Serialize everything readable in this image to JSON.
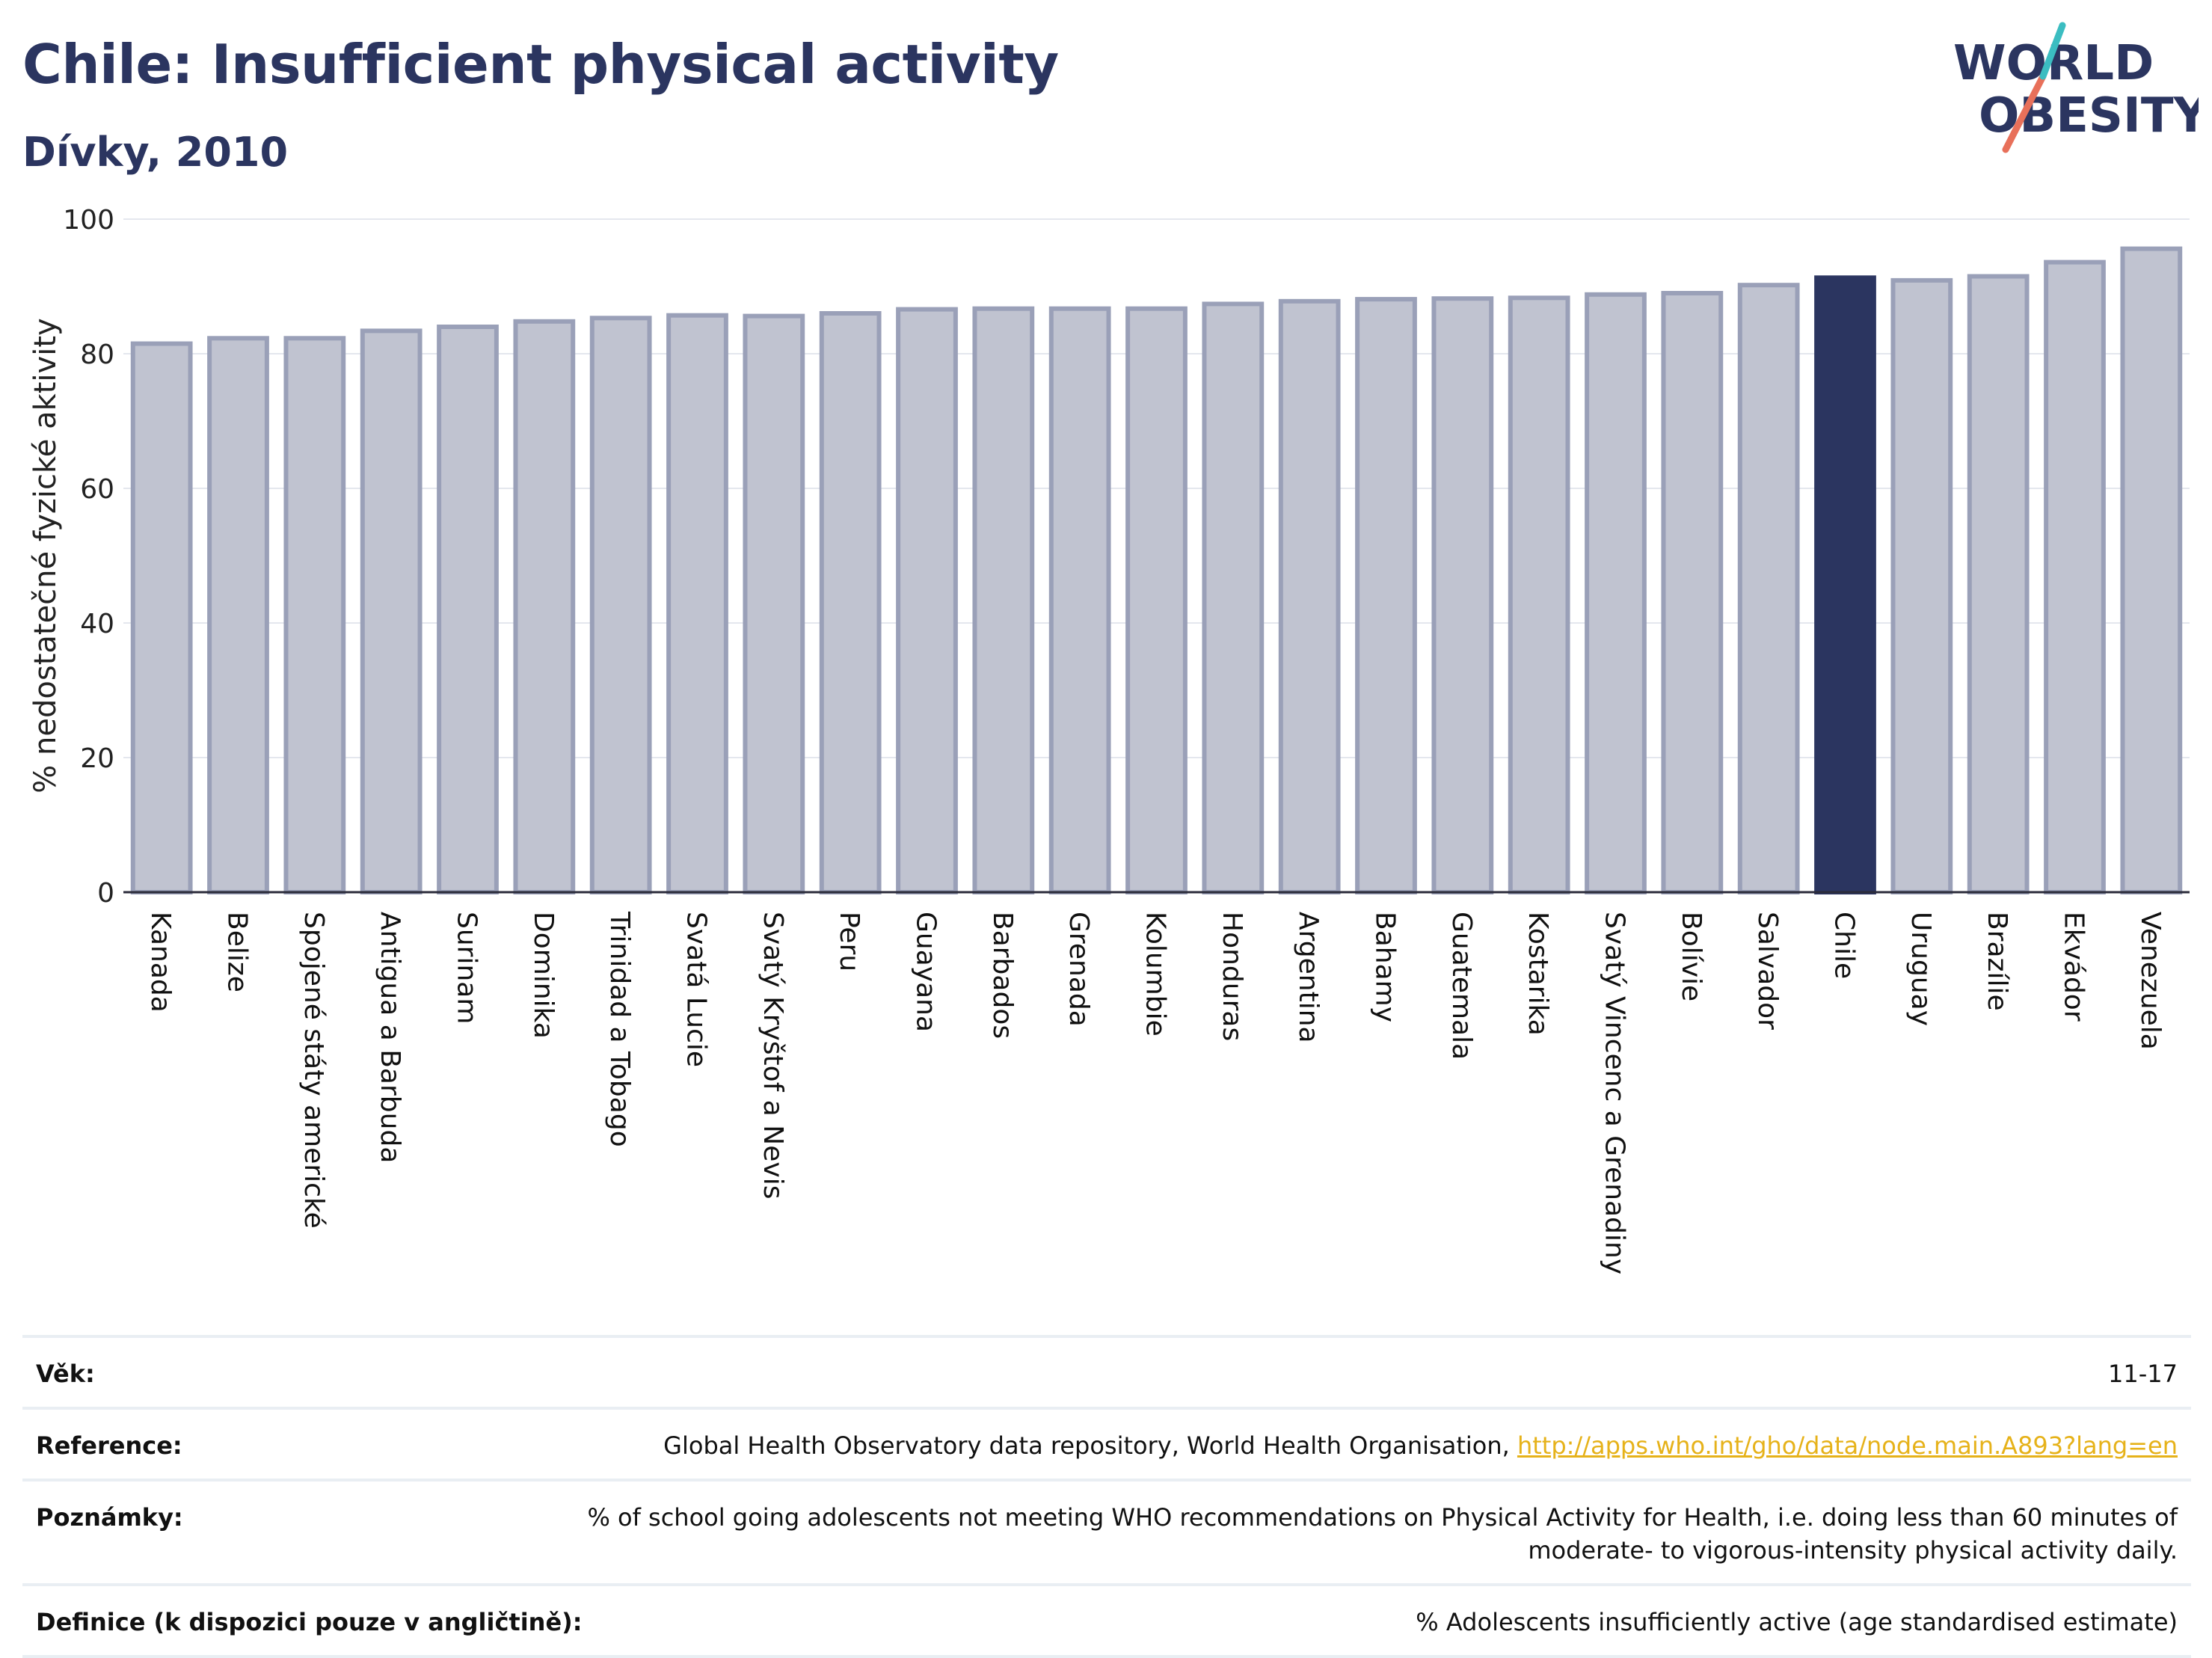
{
  "header": {
    "title": "Chile: Insufficient physical activity",
    "subtitle": "Dívky, 2010"
  },
  "logo": {
    "line1": "WORLD",
    "line2": "OBESITY",
    "colors": {
      "text": "#2b3560",
      "slash_teal": "#3bbdc1",
      "slash_coral": "#e8705a"
    }
  },
  "chart_data": {
    "type": "bar",
    "ylabel": "% nedostatečné fyzické aktivity",
    "xlabel": "",
    "ylim": [
      0,
      100
    ],
    "yticks": [
      0,
      20,
      40,
      60,
      80,
      100
    ],
    "grid": true,
    "highlight": "Chile",
    "colors": {
      "bar": "#c0c3d0",
      "bar_edge": "#9aa0b8",
      "highlight": "#2b3560"
    },
    "categories": [
      "Kanada",
      "Belize",
      "Spojené státy americké",
      "Antigua a Barbuda",
      "Surinam",
      "Dominika",
      "Trinidad a Tobago",
      "Svatá Lucie",
      "Svatý Kryštof a Nevis",
      "Peru",
      "Guayana",
      "Barbados",
      "Grenada",
      "Kolumbie",
      "Honduras",
      "Argentina",
      "Bahamy",
      "Guatemala",
      "Kostarika",
      "Svatý Vincenc a Grenadiny",
      "Bolívie",
      "Salvador",
      "Chile",
      "Uruguay",
      "Brazílie",
      "Ekvádor",
      "Venezuela"
    ],
    "values": [
      81.5,
      82.3,
      82.3,
      83.4,
      84.0,
      84.8,
      85.3,
      85.7,
      85.6,
      86.0,
      86.6,
      86.7,
      86.7,
      86.7,
      87.4,
      87.8,
      88.1,
      88.2,
      88.3,
      88.8,
      89.0,
      90.2,
      91.3,
      90.9,
      91.5,
      93.6,
      95.6
    ]
  },
  "info": {
    "age_label": "Věk:",
    "age_value": "11-17",
    "reference_label": "Reference:",
    "reference_text": "Global Health Observatory data repository, World Health Organisation, ",
    "reference_link": "http://apps.who.int/gho/data/node.main.A893?lang=en",
    "notes_label": "Poznámky:",
    "notes_value": "% of school going adolescents not meeting WHO recommendations on Physical Activity for Health, i.e. doing less than 60 minutes of moderate- to vigorous-intensity physical activity daily.",
    "definition_label": "Definice (k dispozici pouze v angličtině):",
    "definition_value": "% Adolescents insufficiently active (age standardised estimate)"
  }
}
